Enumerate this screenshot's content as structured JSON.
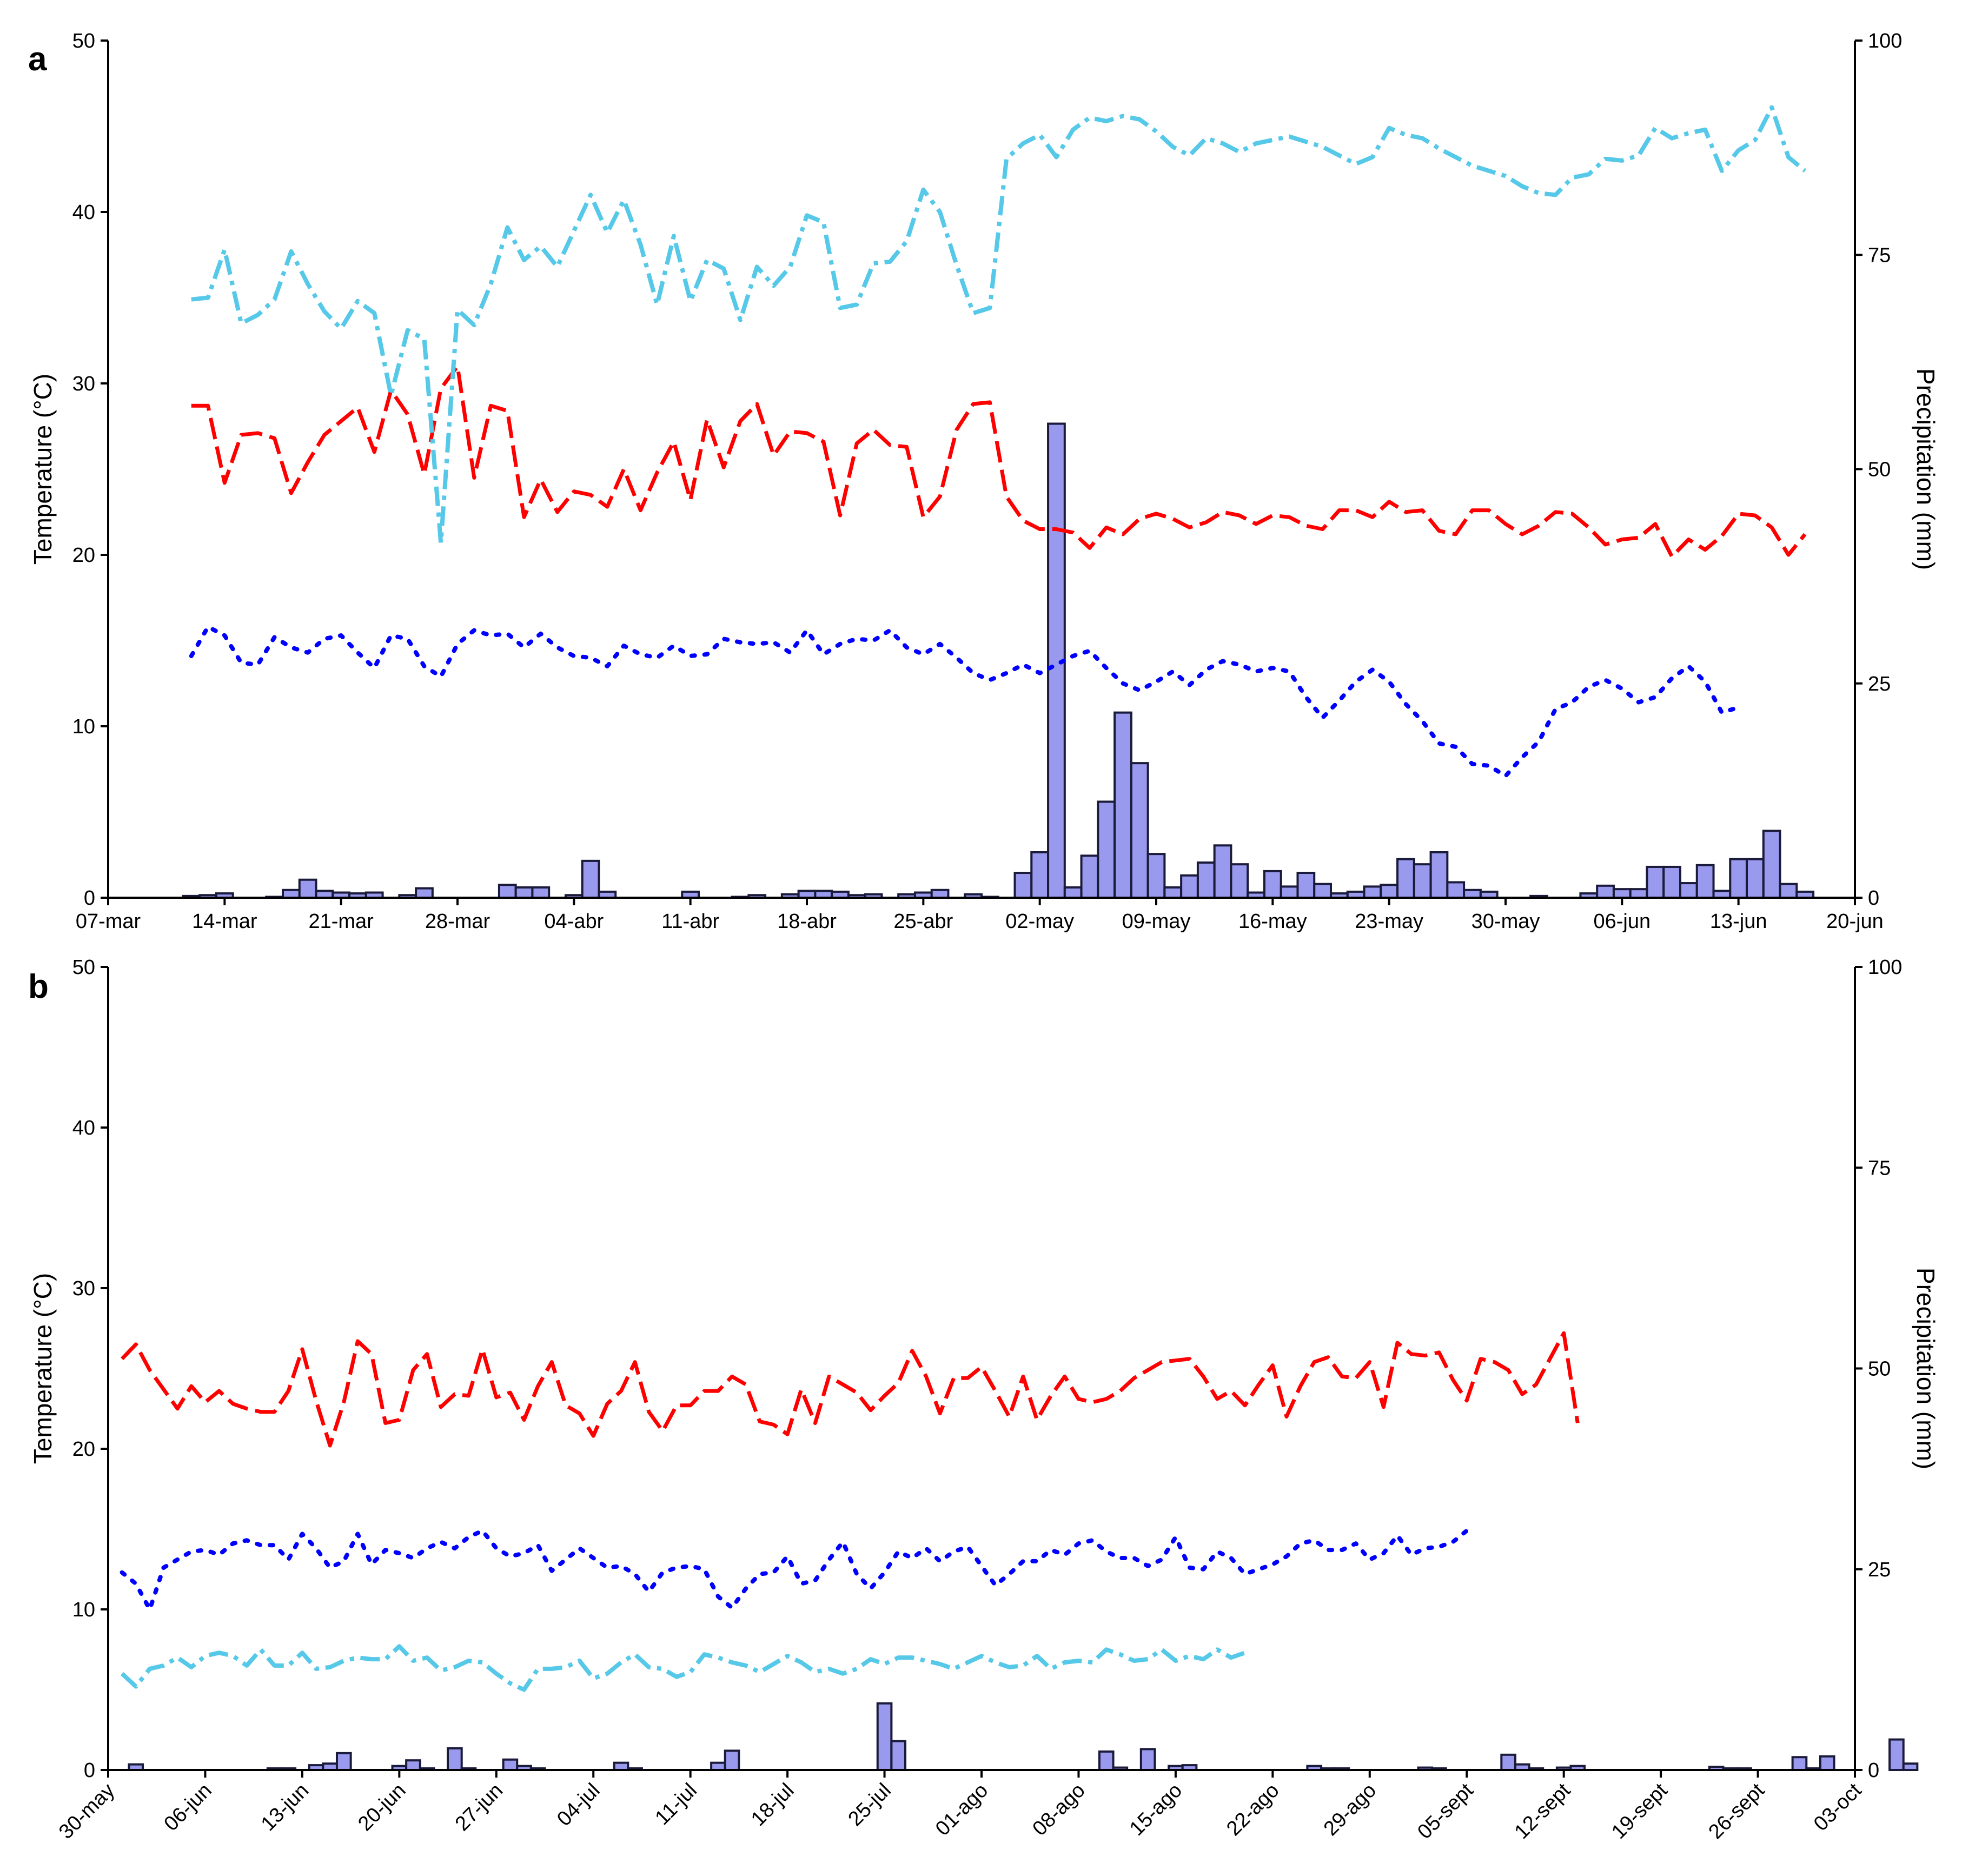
{
  "colors": {
    "tmax": "#ff0000",
    "tmin": "#0000ff",
    "rh_or_other": "#56c8e8",
    "precip_fill": "#9999ee",
    "precip_edge": "#1a1a3a"
  },
  "chart_data": [
    {
      "type": "bar",
      "panel_label": "a",
      "ylabel_left": "Temperature (°C)",
      "ylabel_right": "Precipitation (mm)",
      "ylim_left": [
        0,
        50
      ],
      "ylim_right": [
        0,
        100
      ],
      "yticks_left": [
        0,
        10,
        20,
        30,
        40,
        50
      ],
      "yticks_right": [
        0,
        25,
        50,
        75,
        100
      ],
      "xlim_days": [
        0,
        105
      ],
      "xticks": [
        {
          "day": 0,
          "label": "07-mar"
        },
        {
          "day": 7,
          "label": "14-mar"
        },
        {
          "day": 14,
          "label": "21-mar"
        },
        {
          "day": 21,
          "label": "28-mar"
        },
        {
          "day": 28,
          "label": "04-abr"
        },
        {
          "day": 35,
          "label": "11-abr"
        },
        {
          "day": 42,
          "label": "18-abr"
        },
        {
          "day": 49,
          "label": "25-abr"
        },
        {
          "day": 56,
          "label": "02-may"
        },
        {
          "day": 63,
          "label": "09-may"
        },
        {
          "day": 70,
          "label": "16-may"
        },
        {
          "day": 77,
          "label": "23-may"
        },
        {
          "day": 84,
          "label": "30-may"
        },
        {
          "day": 91,
          "label": "06-jun"
        },
        {
          "day": 98,
          "label": "13-jun"
        },
        {
          "day": 105,
          "label": "20-jun"
        }
      ],
      "series": [
        {
          "style": "tmax",
          "start_day": 5,
          "values": [
            28.7,
            28.7,
            24.2,
            27.0,
            27.1,
            26.8,
            23.6,
            25.4,
            27.0,
            27.8,
            28.6,
            26.0,
            29.6,
            28.2,
            24.7,
            29.7,
            31.0,
            24.5,
            28.7,
            28.4,
            22.2,
            24.4,
            22.5,
            23.7,
            23.5,
            22.8,
            25.0,
            22.6,
            24.8,
            26.6,
            23.2,
            27.9,
            25.1,
            27.8,
            28.8,
            25.8,
            27.2,
            27.1,
            26.6,
            22.3,
            26.5,
            27.3,
            26.4,
            26.3,
            22.2,
            23.4,
            27.3,
            28.8,
            28.9,
            23.4,
            22.0,
            21.5,
            21.5,
            21.3,
            20.4,
            21.6,
            21.2,
            22.1,
            22.4,
            22.1,
            21.6,
            21.9,
            22.5,
            22.3,
            21.8,
            22.3,
            22.2,
            21.7,
            21.5,
            22.6,
            22.6,
            22.2,
            23.1,
            22.5,
            22.6,
            21.4,
            21.2,
            22.6,
            22.6,
            21.8,
            21.2,
            21.7,
            22.5,
            22.4,
            21.6,
            20.6,
            20.9,
            21.0,
            21.8,
            19.9,
            20.9,
            20.3,
            21.1,
            22.4,
            22.3,
            21.6,
            20.0,
            21.2
          ]
        },
        {
          "style": "tmin",
          "start_day": 5,
          "values": [
            14.1,
            15.8,
            15.3,
            13.7,
            13.6,
            15.2,
            14.6,
            14.3,
            15.1,
            15.3,
            14.3,
            13.4,
            15.3,
            15.1,
            13.5,
            12.9,
            14.8,
            15.6,
            15.3,
            15.4,
            14.6,
            15.4,
            14.6,
            14.1,
            14.0,
            13.5,
            14.7,
            14.2,
            14.0,
            14.7,
            14.1,
            14.2,
            15.1,
            14.9,
            14.8,
            14.9,
            14.3,
            15.6,
            14.2,
            14.8,
            15.1,
            15.0,
            15.6,
            14.6,
            14.2,
            14.8,
            14.0,
            13.1,
            12.7,
            13.1,
            13.6,
            13.1,
            13.6,
            14.1,
            14.4,
            13.4,
            12.5,
            12.1,
            12.6,
            13.2,
            12.4,
            13.3,
            13.8,
            13.6,
            13.2,
            13.4,
            13.2,
            11.7,
            10.5,
            11.5,
            12.6,
            13.3,
            12.6,
            11.3,
            10.3,
            9.0,
            8.8,
            7.8,
            7.7,
            7.1,
            8.2,
            9.1,
            11.0,
            11.4,
            12.3,
            12.7,
            12.2,
            11.4,
            11.7,
            12.8,
            13.5,
            12.6,
            10.8,
            11.1
          ]
        },
        {
          "style": "rh_or_other",
          "start_day": 5,
          "values": [
            34.9,
            35.0,
            37.8,
            33.5,
            34.0,
            34.9,
            37.7,
            35.8,
            34.2,
            33.2,
            34.8,
            34.1,
            29.3,
            33.1,
            32.6,
            20.7,
            34.3,
            33.4,
            35.8,
            39.1,
            37.2,
            38.0,
            36.8,
            38.9,
            41.0,
            38.8,
            40.7,
            38.1,
            34.6,
            38.6,
            34.8,
            37.2,
            36.7,
            33.7,
            36.8,
            35.7,
            36.8,
            39.8,
            39.4,
            34.4,
            34.6,
            37.0,
            37.1,
            38.3,
            41.3,
            40.0,
            36.9,
            34.1,
            34.4,
            43.1,
            44.0,
            44.5,
            43.2,
            44.8,
            45.5,
            45.3,
            45.6,
            45.4,
            44.7,
            43.8,
            43.3,
            44.3,
            44.0,
            43.5,
            44.0,
            44.2,
            44.4,
            44.1,
            43.8,
            43.3,
            42.8,
            43.2,
            44.9,
            44.5,
            44.3,
            43.7,
            43.2,
            42.7,
            42.4,
            42.1,
            41.5,
            41.1,
            41.0,
            42.0,
            42.2,
            43.1,
            43.0,
            43.3,
            44.9,
            44.3,
            44.6,
            44.8,
            42.4,
            43.6,
            44.2,
            46.1,
            43.2,
            42.4
          ]
        }
      ],
      "precip": {
        "start_day": 5,
        "values": [
          0.2,
          0.3,
          0.5,
          0.0,
          0.0,
          0.1,
          0.9,
          2.1,
          0.8,
          0.6,
          0.5,
          0.6,
          0.0,
          0.3,
          1.1,
          0.0,
          0.0,
          0.0,
          0.0,
          1.5,
          1.2,
          1.2,
          0.0,
          0.3,
          4.3,
          0.7,
          0.0,
          0.0,
          0.0,
          0.0,
          0.7,
          0.0,
          0.0,
          0.1,
          0.3,
          0.0,
          0.4,
          0.8,
          0.8,
          0.7,
          0.3,
          0.4,
          0.0,
          0.4,
          0.6,
          0.9,
          0.0,
          0.4,
          0.1,
          0.0,
          2.9,
          5.3,
          55.3,
          1.2,
          4.9,
          11.2,
          21.6,
          15.7,
          5.1,
          1.2,
          2.6,
          4.1,
          6.1,
          3.9,
          0.6,
          3.1,
          1.3,
          2.9,
          1.6,
          0.5,
          0.7,
          1.3,
          1.5,
          4.5,
          3.9,
          5.3,
          1.8,
          0.9,
          0.7,
          0.0,
          0.0,
          0.2,
          0.0,
          0.0,
          0.5,
          1.4,
          1.0,
          1.0,
          3.6,
          3.6,
          1.7,
          3.8,
          0.8,
          4.5,
          4.5,
          7.8,
          1.6,
          0.7
        ]
      }
    },
    {
      "type": "bar",
      "panel_label": "b",
      "ylabel_left": "Temperature (°C)",
      "ylabel_right": "Precipitation (mm)",
      "ylim_left": [
        0,
        50
      ],
      "ylim_right": [
        0,
        100
      ],
      "yticks_left": [
        0,
        10,
        20,
        30,
        40,
        50
      ],
      "yticks_right": [
        0,
        25,
        50,
        75,
        100
      ],
      "xlim_days": [
        0,
        126
      ],
      "xticks": [
        {
          "day": 0,
          "label": "30-may"
        },
        {
          "day": 7,
          "label": "06-jun"
        },
        {
          "day": 14,
          "label": "13-jun"
        },
        {
          "day": 21,
          "label": "20-jun"
        },
        {
          "day": 28,
          "label": "27-jun"
        },
        {
          "day": 35,
          "label": "04-jul"
        },
        {
          "day": 42,
          "label": "11-jul"
        },
        {
          "day": 49,
          "label": "18-jul"
        },
        {
          "day": 56,
          "label": "25-jul"
        },
        {
          "day": 63,
          "label": "01-ago"
        },
        {
          "day": 70,
          "label": "08-ago"
        },
        {
          "day": 77,
          "label": "15-ago"
        },
        {
          "day": 84,
          "label": "22-ago"
        },
        {
          "day": 91,
          "label": "29-ago"
        },
        {
          "day": 98,
          "label": "05-sept"
        },
        {
          "day": 105,
          "label": "12-sept"
        },
        {
          "day": 112,
          "label": "19-sept"
        },
        {
          "day": 119,
          "label": "26-sept"
        },
        {
          "day": 126,
          "label": "03-oct"
        }
      ],
      "series": [
        {
          "style": "tmax",
          "start_day": 1,
          "values": [
            25.6,
            26.5,
            24.9,
            23.7,
            22.5,
            23.9,
            22.9,
            23.6,
            22.8,
            22.5,
            22.3,
            22.3,
            23.6,
            26.2,
            23.0,
            20.2,
            22.9,
            26.7,
            25.9,
            21.6,
            21.8,
            24.9,
            25.9,
            22.6,
            23.4,
            23.3,
            26.2,
            23.2,
            23.5,
            21.8,
            23.9,
            25.4,
            22.7,
            22.2,
            20.8,
            22.8,
            23.6,
            25.4,
            22.3,
            21.1,
            22.7,
            22.7,
            23.6,
            23.6,
            24.5,
            24.0,
            21.7,
            21.5,
            20.9,
            23.7,
            21.6,
            24.5,
            24.0,
            23.5,
            22.4,
            23.3,
            24.1,
            26.1,
            24.5,
            22.2,
            24.4,
            24.4,
            25.1,
            23.6,
            22.0,
            24.5,
            21.8,
            23.3,
            24.5,
            23.1,
            22.9,
            23.1,
            23.6,
            24.4,
            24.9,
            25.4,
            25.5,
            25.6,
            24.5,
            23.1,
            23.6,
            22.7,
            24.0,
            25.2,
            22.0,
            23.9,
            25.4,
            25.7,
            24.5,
            24.4,
            25.4,
            22.6,
            26.6,
            25.9,
            25.8,
            26.0,
            24.3,
            23.0,
            25.6,
            25.4,
            24.9,
            23.4,
            24.0,
            25.6,
            27.2,
            21.6
          ]
        },
        {
          "style": "tmin",
          "start_day": 1,
          "values": [
            12.3,
            11.6,
            10.0,
            12.6,
            13.1,
            13.6,
            13.7,
            13.4,
            14.1,
            14.3,
            14.0,
            14.0,
            13.1,
            14.7,
            13.8,
            12.6,
            13.0,
            14.7,
            12.8,
            13.7,
            13.5,
            13.2,
            13.8,
            14.2,
            13.8,
            14.5,
            14.9,
            13.8,
            13.3,
            13.5,
            14.0,
            12.4,
            13.1,
            13.8,
            13.2,
            12.6,
            12.7,
            12.2,
            11.1,
            12.3,
            12.6,
            12.7,
            12.5,
            10.8,
            10.1,
            11.3,
            12.2,
            12.3,
            13.3,
            11.6,
            11.8,
            13.1,
            14.2,
            12.2,
            11.3,
            12.3,
            13.6,
            13.2,
            13.8,
            13.0,
            13.6,
            13.9,
            12.7,
            11.5,
            12.2,
            13.0,
            13.0,
            13.7,
            13.4,
            14.1,
            14.3,
            13.6,
            13.2,
            13.2,
            12.7,
            13.1,
            14.5,
            12.6,
            12.5,
            13.6,
            13.2,
            12.2,
            12.5,
            12.8,
            13.3,
            14.1,
            14.3,
            13.7,
            13.7,
            14.1,
            13.1,
            13.5,
            14.6,
            13.4,
            13.8,
            13.9,
            14.2,
            14.9
          ]
        },
        {
          "style": "rh_or_other",
          "start_day": 1,
          "values": [
            6.0,
            5.2,
            6.3,
            6.5,
            7.0,
            6.4,
            7.1,
            7.3,
            7.1,
            6.5,
            7.5,
            6.5,
            6.5,
            7.3,
            6.3,
            6.4,
            6.8,
            7.0,
            6.9,
            6.9,
            7.7,
            6.8,
            7.0,
            6.2,
            6.4,
            6.8,
            6.7,
            6.0,
            5.4,
            5.0,
            6.3,
            6.3,
            6.4,
            6.8,
            5.7,
            6.0,
            6.7,
            7.2,
            6.4,
            6.3,
            5.8,
            6.1,
            7.2,
            7.0,
            6.7,
            6.5,
            6.1,
            6.6,
            7.1,
            6.7,
            6.1,
            6.3,
            6.0,
            6.3,
            6.9,
            6.6,
            7.0,
            7.0,
            6.8,
            6.6,
            6.3,
            6.7,
            7.1,
            6.7,
            6.4,
            6.5,
            7.1,
            6.3,
            6.7,
            6.8,
            6.7,
            7.5,
            7.2,
            6.8,
            6.9,
            7.5,
            6.8,
            7.1,
            6.9,
            7.5,
            7.0,
            7.3
          ]
        },
        {
          "style": "rh_or_other_dummy_unused",
          "start_day": 0,
          "values": []
        }
      ],
      "precip": {
        "start_day": 1,
        "values": [
          0.0,
          0.7,
          0.0,
          0.0,
          0.0,
          0.0,
          0.0,
          0.0,
          0.0,
          0.0,
          0.0,
          0.2,
          0.2,
          0.0,
          0.6,
          0.8,
          2.1,
          0.0,
          0.0,
          0.0,
          0.5,
          1.2,
          0.2,
          0.0,
          2.7,
          0.2,
          0.0,
          0.0,
          1.3,
          0.5,
          0.2,
          0.0,
          0.0,
          0.0,
          0.0,
          0.0,
          0.9,
          0.2,
          0.0,
          0.0,
          0.0,
          0.0,
          0.0,
          0.9,
          2.4,
          0.0,
          0.0,
          0.0,
          0.0,
          0.0,
          0.0,
          0.0,
          0.0,
          0.0,
          0.0,
          8.3,
          3.6,
          0.0,
          0.0,
          0.0,
          0.0,
          0.0,
          0.0,
          0.0,
          0.0,
          0.0,
          0.0,
          0.0,
          0.0,
          0.0,
          0.0,
          2.3,
          0.3,
          0.0,
          2.6,
          0.0,
          0.5,
          0.6,
          0.0,
          0.0,
          0.0,
          0.0,
          0.0,
          0.0,
          0.0,
          0.0,
          0.5,
          0.2,
          0.2,
          0.0,
          0.0,
          0.0,
          0.0,
          0.0,
          0.3,
          0.2,
          0.0,
          0.0,
          0.0,
          0.0,
          1.9,
          0.7,
          0.2,
          0.0,
          0.3,
          0.5,
          0.0,
          0.0,
          0.0,
          0.0,
          0.0,
          0.0,
          0.0,
          0.0,
          0.0,
          0.4,
          0.2,
          0.2,
          0.0,
          0.0,
          0.0,
          1.6,
          0.2,
          1.7,
          0.0,
          0.0,
          0.0,
          0.0,
          3.8,
          0.8
        ]
      }
    }
  ]
}
